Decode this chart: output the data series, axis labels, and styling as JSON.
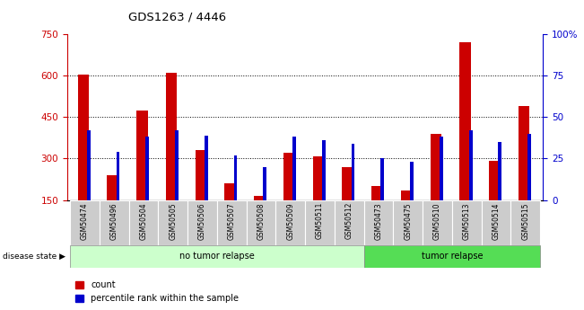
{
  "title": "GDS1263 / 4446",
  "samples": [
    "GSM50474",
    "GSM50496",
    "GSM50504",
    "GSM50505",
    "GSM50506",
    "GSM50507",
    "GSM50508",
    "GSM50509",
    "GSM50511",
    "GSM50512",
    "GSM50473",
    "GSM50475",
    "GSM50510",
    "GSM50513",
    "GSM50514",
    "GSM50515"
  ],
  "count_values": [
    605,
    240,
    475,
    610,
    330,
    210,
    165,
    320,
    308,
    270,
    200,
    185,
    390,
    720,
    290,
    490
  ],
  "percentile_values": [
    42,
    29,
    38,
    42,
    39,
    27,
    20,
    38,
    36,
    34,
    25,
    23,
    38,
    42,
    35,
    40
  ],
  "no_tumor_count": 10,
  "tumor_count": 6,
  "ylim_left": [
    150,
    750
  ],
  "ylim_right": [
    0,
    100
  ],
  "yticks_left": [
    150,
    300,
    450,
    600,
    750
  ],
  "yticks_right": [
    0,
    25,
    50,
    75,
    100
  ],
  "bar_color_red": "#CC0000",
  "bar_color_blue": "#0000CC",
  "bg_no_tumor": "#ccffcc",
  "bg_tumor": "#55dd55",
  "bg_xtick": "#cccccc",
  "left_axis_color": "#CC0000",
  "right_axis_color": "#0000CC",
  "legend_count_label": "count",
  "legend_percentile_label": "percentile rank within the sample",
  "disease_state_label": "disease state",
  "no_tumor_label": "no tumor relapse",
  "tumor_label": "tumor relapse"
}
